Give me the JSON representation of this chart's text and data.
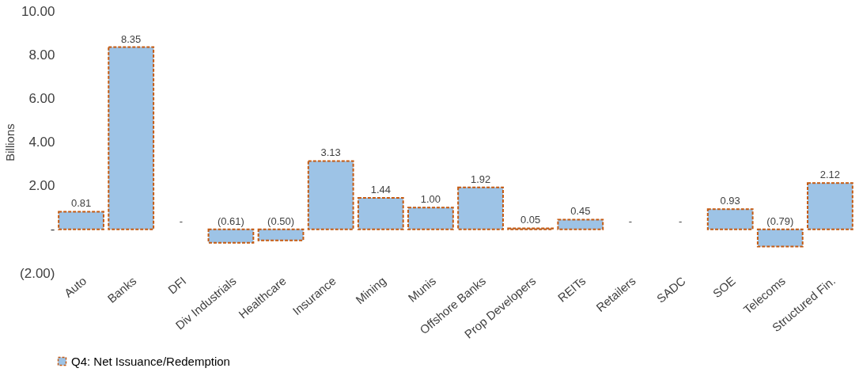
{
  "chart_data": {
    "type": "bar",
    "ylabel": "Billions",
    "categories": [
      "Auto",
      "Banks",
      "DFI",
      "Div Industrials",
      "Healthcare",
      "Insurance",
      "Mining",
      "Munis",
      "Offshore Banks",
      "Prop Developers",
      "REITs",
      "Retailers",
      "SADC",
      "SOE",
      "Telecoms",
      "Structured Fin."
    ],
    "series": [
      {
        "name": "Q4: Net Issuance/Redemption",
        "color": "#9dc3e6",
        "values": [
          0.81,
          8.35,
          0,
          -0.61,
          -0.5,
          3.13,
          1.44,
          1.0,
          1.92,
          0.05,
          0.45,
          0,
          0,
          0.93,
          -0.79,
          2.12
        ],
        "value_labels": [
          "0.81",
          "8.35",
          "-",
          "(0.61)",
          "(0.50)",
          "3.13",
          "1.44",
          "1.00",
          "1.92",
          "0.05",
          "0.45",
          "-",
          "-",
          "0.93",
          "(0.79)",
          "2.12"
        ]
      }
    ],
    "ylim": [
      -2,
      10
    ],
    "yticks": [
      {
        "value": -2,
        "label": "(2.00)"
      },
      {
        "value": 0,
        "label": "-"
      },
      {
        "value": 2,
        "label": "2.00"
      },
      {
        "value": 4,
        "label": "4.00"
      },
      {
        "value": 6,
        "label": "6.00"
      },
      {
        "value": 8,
        "label": "8.00"
      },
      {
        "value": 10,
        "label": "10.00"
      }
    ],
    "grid": false,
    "legend": "bottom"
  }
}
